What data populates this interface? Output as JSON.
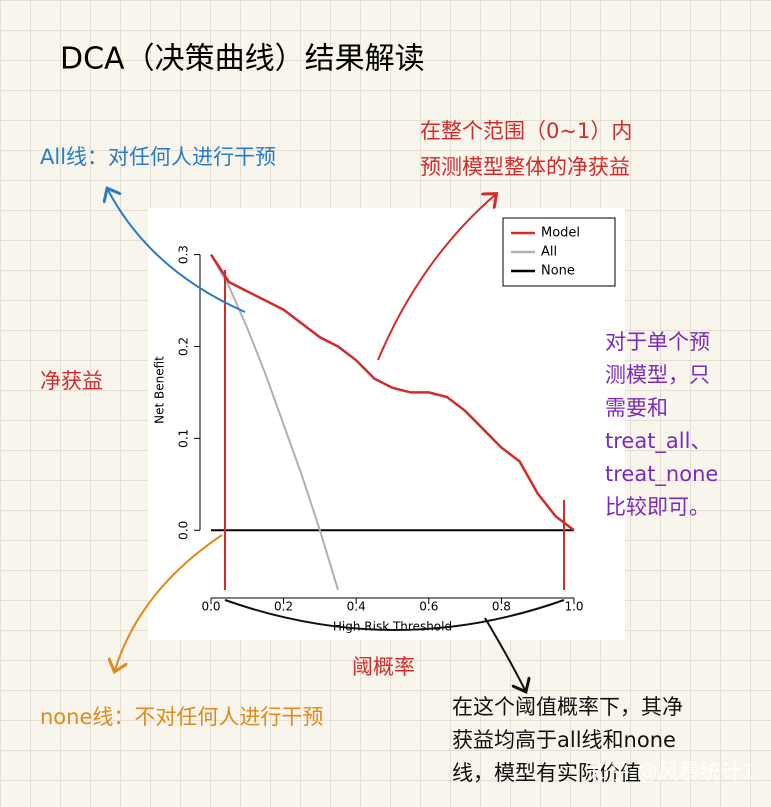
{
  "title": "DCA（决策曲线）结果解读",
  "chart_data": {
    "type": "line",
    "x": [
      0,
      0.05,
      0.1,
      0.15,
      0.2,
      0.25,
      0.3,
      0.35,
      0.4,
      0.45,
      0.5,
      0.55,
      0.6,
      0.65,
      0.7,
      0.75,
      0.8,
      0.85,
      0.9,
      0.95,
      1.0
    ],
    "series": [
      {
        "name": "Model",
        "color": "#d22b2b",
        "values": [
          0.3,
          0.27,
          0.26,
          0.25,
          0.24,
          0.225,
          0.21,
          0.2,
          0.185,
          0.165,
          0.155,
          0.15,
          0.15,
          0.145,
          0.13,
          0.11,
          0.09,
          0.075,
          0.04,
          0.015,
          0.0
        ]
      },
      {
        "name": "All",
        "color": "#b0b0b0",
        "values": [
          0.3,
          0.265,
          0.22,
          0.17,
          0.115,
          0.06,
          0.0,
          -0.065,
          null,
          null,
          null,
          null,
          null,
          null,
          null,
          null,
          null,
          null,
          null,
          null,
          null
        ]
      },
      {
        "name": "None",
        "color": "#000000",
        "values": [
          0,
          0,
          0,
          0,
          0,
          0,
          0,
          0,
          0,
          0,
          0,
          0,
          0,
          0,
          0,
          0,
          0,
          0,
          0,
          0,
          0
        ]
      }
    ],
    "xlim": [
      0,
      1
    ],
    "ylim": [
      -0.065,
      0.305
    ],
    "xticks": [
      {
        "value": 0,
        "label": "0.0"
      },
      0.2,
      0.4,
      0.6,
      0.8,
      {
        "value": 1,
        "label": "1.0"
      }
    ],
    "yticks": [
      {
        "value": 0,
        "label": "0.0"
      },
      0.1,
      0.2,
      0.3
    ],
    "xlabel": "High Risk Threshold",
    "ylabel": "Net Benefit",
    "legend": "top-right"
  },
  "annotations": [
    {
      "color": "#2a7bc6",
      "lines": [
        "All线：对任何人进行干预"
      ]
    },
    {
      "color": "#d22b2b",
      "lines": [
        "在整个范围（0~1）内",
        "预测模型整体的净获益"
      ]
    },
    {
      "color": "#d22b2b",
      "lines": [
        "净获益"
      ]
    },
    {
      "color": "#7a2bb8",
      "lines": [
        "对于单个预",
        "测模型，只",
        "需要和",
        "treat_all、",
        "treat_none",
        "比较即可。"
      ]
    },
    {
      "color": "#d22b2b",
      "lines": [
        "阈概率"
      ]
    },
    {
      "color": "#e08a1e",
      "lines": [
        "none线：不对任何人进行干预"
      ]
    },
    {
      "color": "#111111",
      "lines": [
        "在这个阈值概率下，其净",
        "获益均高于all线和none",
        "线，模型有实际价值"
      ]
    },
    {
      "color": "#ffffff",
      "lines": [
        "知乎 @风暴统计1"
      ]
    }
  ]
}
